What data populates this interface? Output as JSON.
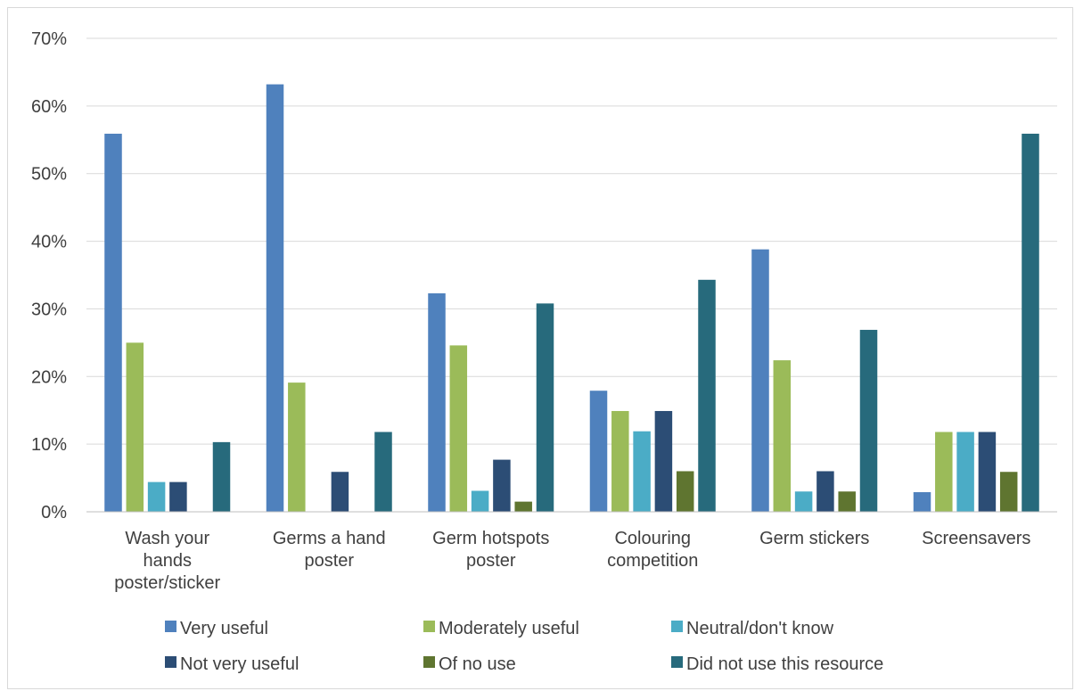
{
  "chart_data": {
    "type": "bar",
    "categories": [
      [
        "Wash your",
        "hands",
        "poster/sticker"
      ],
      [
        "Germs a hand",
        "poster"
      ],
      [
        "Germ hotspots",
        "poster"
      ],
      [
        "Colouring",
        "competition"
      ],
      [
        "Germ stickers"
      ],
      [
        "Screensavers"
      ]
    ],
    "series": [
      {
        "name": "Very useful",
        "color": "#4f81bd",
        "values": [
          55.9,
          63.2,
          32.3,
          17.9,
          38.8,
          2.9
        ]
      },
      {
        "name": "Moderately useful",
        "color": "#9bbb59",
        "values": [
          25.0,
          19.1,
          24.6,
          14.9,
          22.4,
          11.8
        ]
      },
      {
        "name": "Neutral/don't know",
        "color": "#4bacc6",
        "values": [
          4.4,
          0,
          3.1,
          11.9,
          3.0,
          11.8
        ]
      },
      {
        "name": "Not very useful",
        "color": "#2c4d75",
        "values": [
          4.4,
          5.9,
          7.7,
          14.9,
          6.0,
          11.8
        ]
      },
      {
        "name": "Of no use",
        "color": "#5f7530",
        "values": [
          0,
          0,
          1.5,
          6.0,
          3.0,
          5.9
        ]
      },
      {
        "name": "Did not use this resource",
        "color": "#276a7c",
        "values": [
          10.3,
          11.8,
          30.8,
          34.3,
          26.9,
          55.9
        ]
      }
    ],
    "yticks": [
      "0%",
      "10%",
      "20%",
      "30%",
      "40%",
      "50%",
      "60%",
      "70%"
    ],
    "ylim": [
      0,
      70
    ],
    "grid": true,
    "legend_placement": "bottom"
  }
}
